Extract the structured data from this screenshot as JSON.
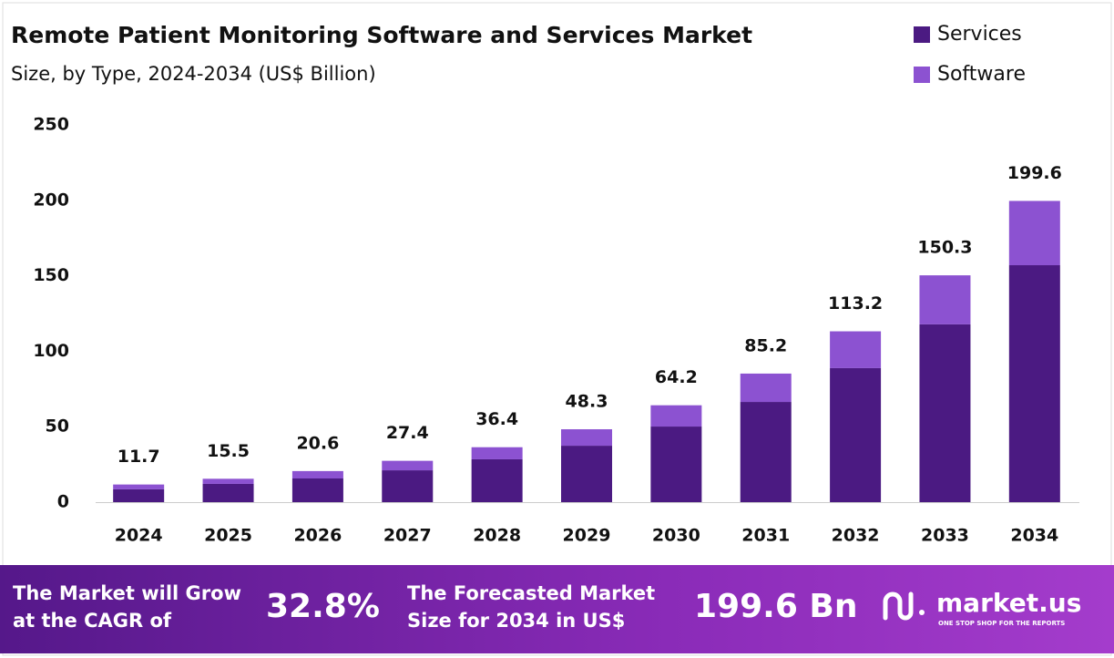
{
  "chart_data": {
    "type": "stacked_bar",
    "title": "Remote Patient Monitoring Software and Services Market",
    "subtitle": "Size, by Type, 2024-2034 (US$ Billion)",
    "categories": [
      "2024",
      "2025",
      "2026",
      "2027",
      "2028",
      "2029",
      "2030",
      "2031",
      "2032",
      "2033",
      "2034"
    ],
    "series": [
      {
        "name": "Services",
        "color": "#4b1a82",
        "values": [
          8.5,
          12.1,
          15.7,
          21.1,
          28.4,
          37.4,
          50.1,
          66.4,
          88.8,
          117.8,
          157.0
        ]
      },
      {
        "name": "Software",
        "color": "#8c52d1",
        "values": [
          3.2,
          3.4,
          4.9,
          6.3,
          8.0,
          10.9,
          14.1,
          18.8,
          24.4,
          32.5,
          42.6
        ]
      }
    ],
    "totals": [
      11.7,
      15.5,
      20.6,
      27.4,
      36.4,
      48.3,
      64.2,
      85.2,
      113.2,
      150.3,
      199.6
    ],
    "ylim": [
      0,
      250
    ],
    "yticks": [
      0,
      50,
      100,
      150,
      200,
      250
    ],
    "grid": false,
    "legend": "top-right"
  },
  "footer": {
    "cagr_text": [
      "The Market will Grow",
      "at the CAGR of"
    ],
    "cagr_value": "32.8%",
    "forecast_text": [
      "The Forecasted Market",
      "Size for 2034 in US$"
    ],
    "forecast_value": "199.6 Bn",
    "brand": "market.us",
    "tagline": "ONE STOP SHOP FOR THE REPORTS"
  }
}
